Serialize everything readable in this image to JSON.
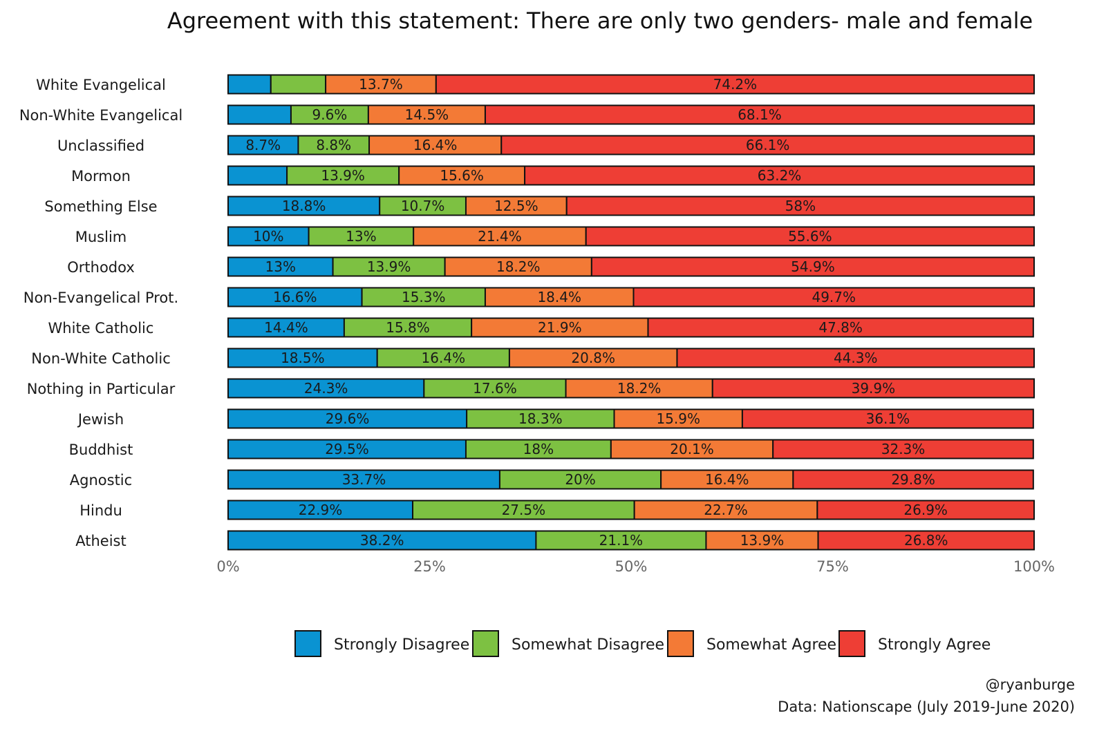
{
  "chart_data": {
    "type": "bar",
    "orientation": "horizontal",
    "stacked": true,
    "title": "Agreement with this statement: There are only two genders- male and female",
    "xlabel": "",
    "ylabel": "",
    "xlim": [
      0,
      100
    ],
    "x_ticks": [
      "0%",
      "25%",
      "50%",
      "75%",
      "100%"
    ],
    "x_tick_values": [
      0,
      25,
      50,
      75,
      100
    ],
    "legend_position": "bottom",
    "categories": [
      "White Evangelical",
      "Non-White Evangelical",
      "Unclassified",
      "Mormon",
      "Something Else",
      "Muslim",
      "Orthodox",
      "Non-Evangelical Prot.",
      "White Catholic",
      "Non-White Catholic",
      "Nothing in Particular",
      "Jewish",
      "Buddhist",
      "Agnostic",
      "Hindu",
      "Atheist"
    ],
    "series": [
      {
        "name": "Strongly Disagree",
        "color": "#0a93d2",
        "values": [
          5.3,
          7.8,
          8.7,
          7.3,
          18.8,
          10,
          13,
          16.6,
          14.4,
          18.5,
          24.3,
          29.6,
          29.5,
          33.7,
          22.9,
          38.2
        ],
        "labels": [
          "",
          "",
          "8.7%",
          "",
          "18.8%",
          "10%",
          "13%",
          "16.6%",
          "14.4%",
          "18.5%",
          "24.3%",
          "29.6%",
          "29.5%",
          "33.7%",
          "22.9%",
          "38.2%"
        ]
      },
      {
        "name": "Somewhat Disagree",
        "color": "#7dc142",
        "values": [
          6.8,
          9.6,
          8.8,
          13.9,
          10.7,
          13,
          13.9,
          15.3,
          15.8,
          16.4,
          17.6,
          18.3,
          18,
          20,
          27.5,
          21.1
        ],
        "labels": [
          "",
          "9.6%",
          "8.8%",
          "13.9%",
          "10.7%",
          "13%",
          "13.9%",
          "15.3%",
          "15.8%",
          "16.4%",
          "17.6%",
          "18.3%",
          "18%",
          "20%",
          "27.5%",
          "21.1%"
        ]
      },
      {
        "name": "Somewhat Agree",
        "color": "#f37a36",
        "values": [
          13.7,
          14.5,
          16.4,
          15.6,
          12.5,
          21.4,
          18.2,
          18.4,
          21.9,
          20.8,
          18.2,
          15.9,
          20.1,
          16.4,
          22.7,
          13.9
        ],
        "labels": [
          "13.7%",
          "14.5%",
          "16.4%",
          "15.6%",
          "12.5%",
          "21.4%",
          "18.2%",
          "18.4%",
          "21.9%",
          "20.8%",
          "18.2%",
          "15.9%",
          "20.1%",
          "16.4%",
          "22.7%",
          "13.9%"
        ]
      },
      {
        "name": "Strongly Agree",
        "color": "#ee3e35",
        "values": [
          74.2,
          68.1,
          66.1,
          63.2,
          58,
          55.6,
          54.9,
          49.7,
          47.8,
          44.3,
          39.9,
          36.1,
          32.3,
          29.8,
          26.9,
          26.8
        ],
        "labels": [
          "74.2%",
          "68.1%",
          "66.1%",
          "63.2%",
          "58%",
          "55.6%",
          "54.9%",
          "49.7%",
          "47.8%",
          "44.3%",
          "39.9%",
          "36.1%",
          "32.3%",
          "29.8%",
          "26.9%",
          "26.8%"
        ]
      }
    ]
  },
  "caption": {
    "handle": "@ryanburge",
    "source": "Data: Nationscape (July 2019-June 2020)"
  }
}
